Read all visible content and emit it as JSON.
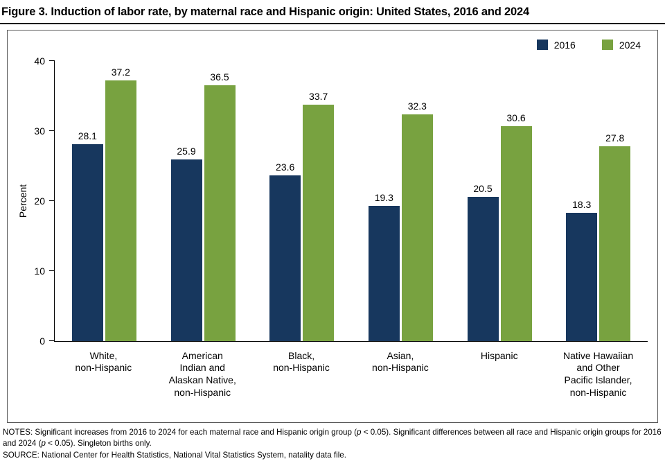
{
  "title": "Figure 3. Induction of labor rate, by maternal race and Hispanic origin: United States, 2016 and 2024",
  "chart_data": {
    "type": "bar",
    "title": "Figure 3. Induction of labor rate, by maternal race and Hispanic origin: United States, 2016 and 2024",
    "xlabel": "",
    "ylabel": "Percent",
    "ylim": [
      0,
      40
    ],
    "yticks": [
      0,
      10,
      20,
      30,
      40
    ],
    "grid": false,
    "legend_position": "top-right",
    "categories": [
      "White, non-Hispanic",
      "American Indian and Alaskan Native, non-Hispanic",
      "Black, non-Hispanic",
      "Asian, non-Hispanic",
      "Hispanic",
      "Native Hawaiian and Other Pacific Islander, non-Hispanic"
    ],
    "category_lines": [
      [
        "White,",
        "non-Hispanic"
      ],
      [
        "American",
        "Indian and",
        "Alaskan Native,",
        "non-Hispanic"
      ],
      [
        "Black,",
        "non-Hispanic"
      ],
      [
        "Asian,",
        "non-Hispanic"
      ],
      [
        "Hispanic"
      ],
      [
        "Native Hawaiian",
        "and Other",
        "Pacific Islander,",
        "non-Hispanic"
      ]
    ],
    "series": [
      {
        "name": "2016",
        "color": "#17375E",
        "values": [
          28.1,
          25.9,
          23.6,
          19.3,
          20.5,
          18.3
        ]
      },
      {
        "name": "2024",
        "color": "#78A240",
        "values": [
          37.2,
          36.5,
          33.7,
          32.3,
          30.6,
          27.8
        ]
      }
    ]
  },
  "notes": {
    "notes_segments": [
      {
        "text": "NOTES: Significant increases from 2016 to 2024 for each maternal race and Hispanic origin group (",
        "italic": false
      },
      {
        "text": "p",
        "italic": true
      },
      {
        "text": " < 0.05). Significant differences between all race and Hispanic origin groups for 2016 and 2024 (",
        "italic": false
      },
      {
        "text": "p",
        "italic": true
      },
      {
        "text": " < 0.05). Singleton births only.",
        "italic": false
      }
    ],
    "source": "SOURCE: National Center for Health Statistics, National Vital Statistics System, natality data file."
  }
}
